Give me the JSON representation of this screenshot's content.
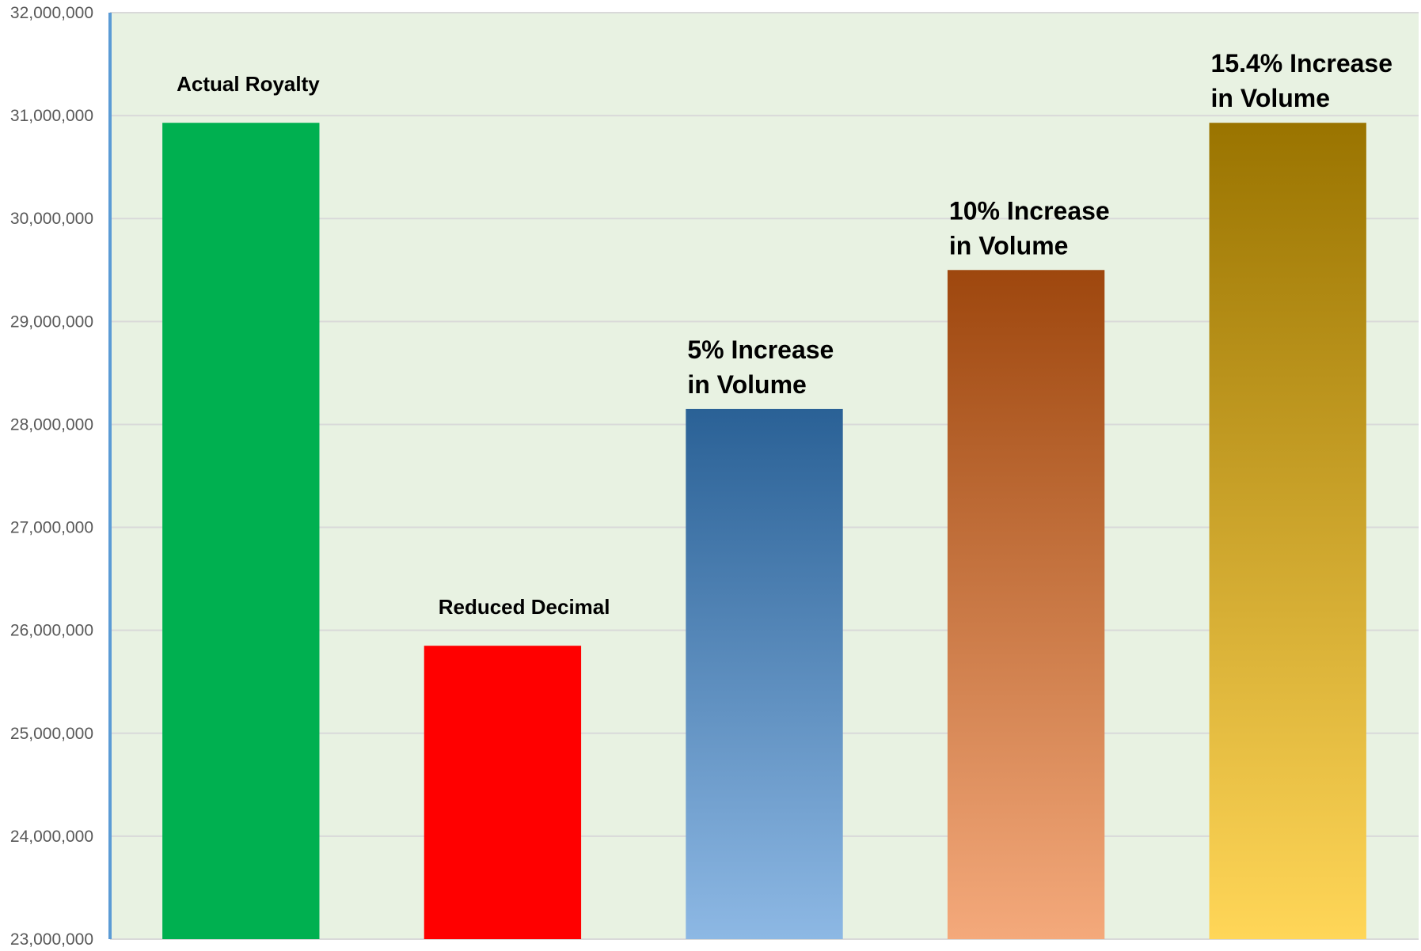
{
  "chart_data": {
    "type": "bar",
    "title": "",
    "xlabel": "",
    "ylabel": "",
    "ylim": [
      23000000,
      32000000
    ],
    "yticks": [
      23000000,
      24000000,
      25000000,
      26000000,
      27000000,
      28000000,
      29000000,
      30000000,
      31000000,
      32000000
    ],
    "ytick_labels": [
      "23,000,000",
      "24,000,000",
      "25,000,000",
      "26,000,000",
      "27,000,000",
      "28,000,000",
      "29,000,000",
      "30,000,000",
      "31,000,000",
      "32,000,000"
    ],
    "grid": true,
    "legend": "none",
    "categories": [
      [
        "Actual Royalty"
      ],
      [
        "Reduced Decimal"
      ],
      [
        "5% Increase",
        "in Volume"
      ],
      [
        "10% Increase",
        "in Volume"
      ],
      [
        "15.4% Increase",
        "in Volume"
      ]
    ],
    "values": [
      30930000,
      25850000,
      28150000,
      29500000,
      30930000
    ],
    "colors": {
      "plot_background": "#e8f2e2",
      "axis": "#5b9bd5",
      "gridline": "#d9d9d9",
      "bars": [
        {
          "top": "#00b050",
          "bottom": "#00b050"
        },
        {
          "top": "#ff0000",
          "bottom": "#ff0000"
        },
        {
          "top": "#2a6196",
          "bottom": "#8db8e4"
        },
        {
          "top": "#9e470e",
          "bottom": "#f4a97b"
        },
        {
          "top": "#9a7400",
          "bottom": "#ffd658"
        }
      ]
    }
  }
}
